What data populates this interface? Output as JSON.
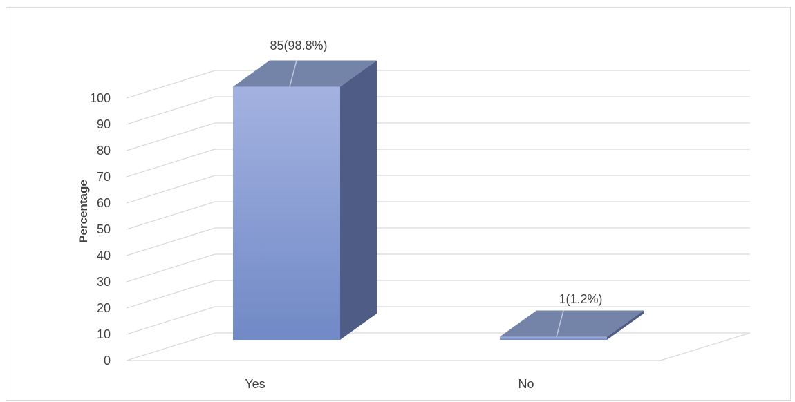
{
  "chart_data": {
    "type": "bar",
    "categories": [
      "Yes",
      "No"
    ],
    "values": [
      98.8,
      1.2
    ],
    "data_labels": [
      "85(98.8%)",
      "1(1.2%)"
    ],
    "ylabel": "Percentage",
    "xlabel": "",
    "ylim": [
      0,
      100
    ],
    "yticks": [
      "0",
      "10",
      "20",
      "30",
      "40",
      "50",
      "60",
      "70",
      "80",
      "90",
      "100"
    ],
    "grid": true,
    "style": "3d-column",
    "colors": {
      "front_top": "#a3b2e0",
      "front_bottom": "#7189c6",
      "side": "#4f5d86",
      "top": "#7483a8",
      "label_line": "#bfc8dc"
    }
  }
}
